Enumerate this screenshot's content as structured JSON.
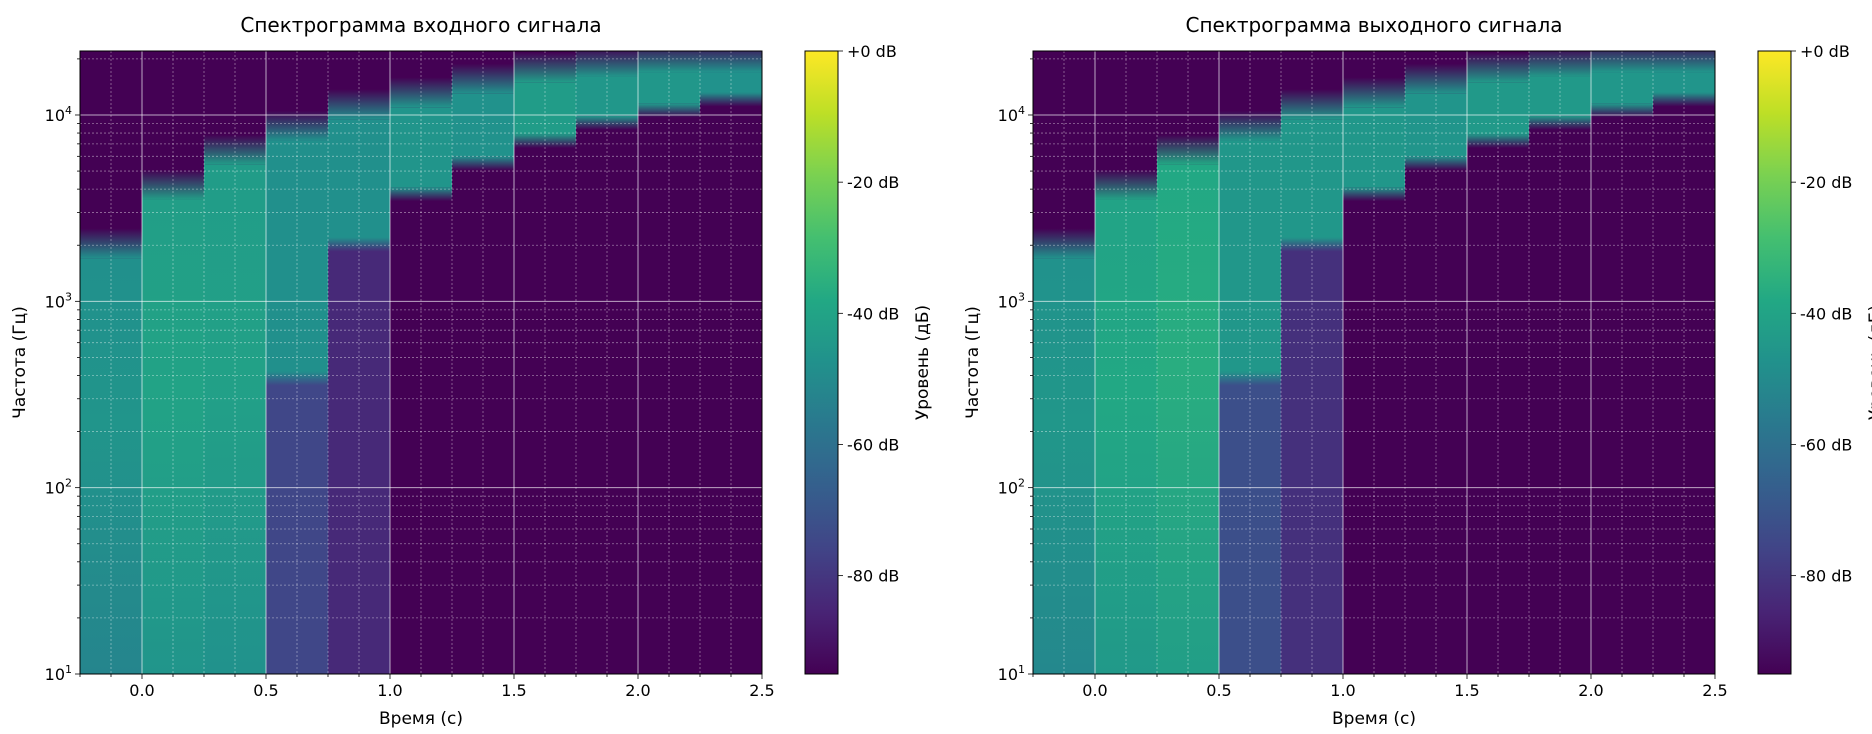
{
  "chart_data": [
    {
      "type": "heatmap",
      "title": "Спектрограмма входного сигнала",
      "xlabel": "Время (с)",
      "ylabel": "Частота (Гц)",
      "xlim": [
        -0.25,
        2.5
      ],
      "ylim": [
        10,
        22050
      ],
      "yscale": "log",
      "xticks": [
        "0.0",
        "0.5",
        "1.0",
        "1.5",
        "2.0",
        "2.5"
      ],
      "yticks": [
        {
          "base": "10",
          "exp": "1"
        },
        {
          "base": "10",
          "exp": "2"
        },
        {
          "base": "10",
          "exp": "3"
        },
        {
          "base": "10",
          "exp": "4"
        }
      ],
      "grid": true,
      "colormap": "viridis",
      "colorbar": {
        "label": "Уровень (дБ)",
        "range": [
          -95,
          0
        ],
        "ticks": [
          "+0 dB",
          "-20 dB",
          "-40 dB",
          "-60 dB",
          "-80 dB"
        ]
      },
      "segments": [
        {
          "t0": -0.25,
          "t1": 0.0,
          "f_high": 1700,
          "level_db": -48
        },
        {
          "t0": 0.0,
          "t1": 0.25,
          "f_high": 3500,
          "level_db": -42
        },
        {
          "t0": 0.25,
          "t1": 0.5,
          "f_high": 5400,
          "level_db": -43
        },
        {
          "t0": 0.5,
          "t1": 0.75,
          "f_low": 420,
          "f_high": 7300,
          "level_db": -48,
          "floor_db": -75
        },
        {
          "t0": 0.75,
          "t1": 1.0,
          "f_low": 2200,
          "f_high": 9500,
          "level_db": -48,
          "floor_db": -84
        },
        {
          "t0": 1.0,
          "t1": 1.25,
          "f_low": 4100,
          "f_high": 11000,
          "level_db": -46
        },
        {
          "t0": 1.25,
          "t1": 1.5,
          "f_low": 6000,
          "f_high": 13000,
          "level_db": -47
        },
        {
          "t0": 1.5,
          "t1": 1.75,
          "f_low": 7900,
          "f_high": 15000,
          "level_db": -43
        },
        {
          "t0": 1.75,
          "t1": 2.0,
          "f_low": 9900,
          "f_high": 16000,
          "level_db": -45
        },
        {
          "t0": 2.0,
          "t1": 2.25,
          "f_low": 11500,
          "f_high": 17000,
          "level_db": -45
        },
        {
          "t0": 2.25,
          "t1": 2.5,
          "f_low": 13200,
          "f_high": 17000,
          "level_db": -47
        }
      ]
    },
    {
      "type": "heatmap",
      "title": "Спектрограмма выходного сигнала",
      "xlabel": "Время (с)",
      "ylabel": "Частота (Гц)",
      "xlim": [
        -0.25,
        2.5
      ],
      "ylim": [
        10,
        22050
      ],
      "yscale": "log",
      "xticks": [
        "0.0",
        "0.5",
        "1.0",
        "1.5",
        "2.0",
        "2.5"
      ],
      "yticks": [
        {
          "base": "10",
          "exp": "1"
        },
        {
          "base": "10",
          "exp": "2"
        },
        {
          "base": "10",
          "exp": "3"
        },
        {
          "base": "10",
          "exp": "4"
        }
      ],
      "grid": true,
      "colormap": "viridis",
      "colorbar": {
        "label": "Уровень (дБ)",
        "range": [
          -95,
          0
        ],
        "ticks": [
          "+0 dB",
          "-20 dB",
          "-40 dB",
          "-60 dB",
          "-80 dB"
        ]
      },
      "segments": [
        {
          "t0": -0.25,
          "t1": 0.0,
          "f_high": 1700,
          "level_db": -47
        },
        {
          "t0": 0.0,
          "t1": 0.25,
          "f_high": 3500,
          "level_db": -40
        },
        {
          "t0": 0.25,
          "t1": 0.5,
          "f_high": 5400,
          "level_db": -38
        },
        {
          "t0": 0.5,
          "t1": 0.75,
          "f_low": 420,
          "f_high": 7300,
          "level_db": -45,
          "floor_db": -72
        },
        {
          "t0": 0.75,
          "t1": 1.0,
          "f_low": 2200,
          "f_high": 9500,
          "level_db": -45,
          "floor_db": -82
        },
        {
          "t0": 1.0,
          "t1": 1.25,
          "f_low": 4100,
          "f_high": 11000,
          "level_db": -45
        },
        {
          "t0": 1.25,
          "t1": 1.5,
          "f_low": 6000,
          "f_high": 13000,
          "level_db": -46
        },
        {
          "t0": 1.5,
          "t1": 1.75,
          "f_low": 7900,
          "f_high": 15000,
          "level_db": -44
        },
        {
          "t0": 1.75,
          "t1": 2.0,
          "f_low": 9900,
          "f_high": 16000,
          "level_db": -44
        },
        {
          "t0": 2.0,
          "t1": 2.25,
          "f_low": 11500,
          "f_high": 17000,
          "level_db": -45
        },
        {
          "t0": 2.25,
          "t1": 2.5,
          "f_low": 13200,
          "f_high": 17000,
          "level_db": -46
        }
      ]
    }
  ]
}
